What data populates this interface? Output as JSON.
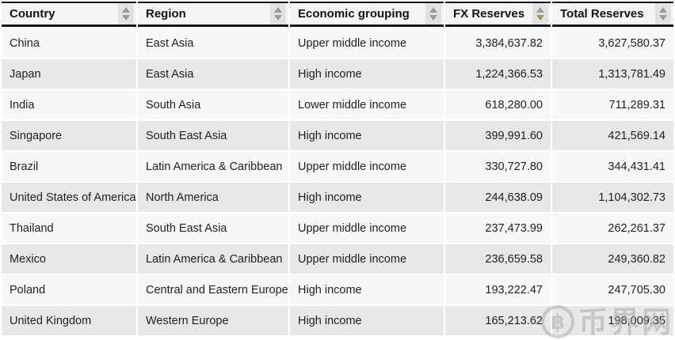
{
  "colors": {
    "header_bg": "#f5f5f5",
    "row_odd": "#f8f8f8",
    "row_even": "#e8e8e8",
    "rule_black": "#161616",
    "sort_idle": "#9a9a9a",
    "sort_active": "#a6954f"
  },
  "table": {
    "columns": [
      {
        "label": "Country",
        "align": "left",
        "sort": "none"
      },
      {
        "label": "Region",
        "align": "left",
        "sort": "none"
      },
      {
        "label": "Economic grouping",
        "align": "left",
        "sort": "none"
      },
      {
        "label": "FX Reserves",
        "align": "right",
        "sort": "desc"
      },
      {
        "label": "Total Reserves",
        "align": "right",
        "sort": "none"
      }
    ],
    "rows": [
      [
        "China",
        "East Asia",
        "Upper middle income",
        "3,384,637.82",
        "3,627,580.37"
      ],
      [
        "Japan",
        "East Asia",
        "High income",
        "1,224,366.53",
        "1,313,781.49"
      ],
      [
        "India",
        "South Asia",
        "Lower middle income",
        "618,280.00",
        "711,289.31"
      ],
      [
        "Singapore",
        "South East Asia",
        "High income",
        "399,991.60",
        "421,569.14"
      ],
      [
        "Brazil",
        "Latin America & Caribbean",
        "Upper middle income",
        "330,727.80",
        "344,431.41"
      ],
      [
        "United States of America",
        "North America",
        "High income",
        "244,638.09",
        "1,104,302.73"
      ],
      [
        "Thailand",
        "South East Asia",
        "Upper middle income",
        "237,473.99",
        "262,261.37"
      ],
      [
        "Mexico",
        "Latin America & Caribbean",
        "Upper middle income",
        "236,659.58",
        "249,360.82"
      ],
      [
        "Poland",
        "Central and Eastern Europe",
        "High income",
        "193,222.47",
        "247,705.30"
      ],
      [
        "United Kingdom",
        "Western Europe",
        "High income",
        "165,213.62",
        "198,009.35"
      ]
    ]
  },
  "watermark": {
    "icon": "฿",
    "text": "币界网"
  }
}
